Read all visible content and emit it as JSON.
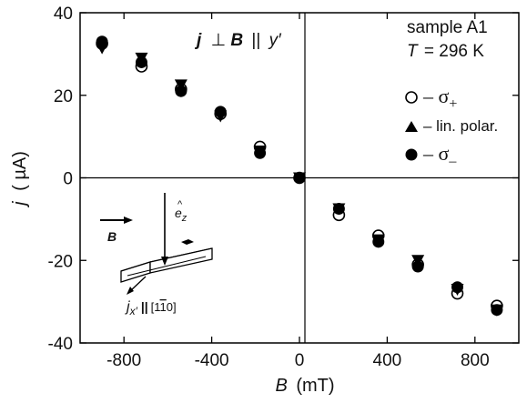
{
  "chart_data": {
    "type": "scatter",
    "xlabel_var": "B",
    "xlabel_unit": "(mT)",
    "ylabel_var": "j",
    "ylabel_unit": "( µA)",
    "xlim": [
      -1000,
      1000
    ],
    "ylim": [
      -40,
      40
    ],
    "xticks": [
      "-800",
      "-400",
      "0",
      "400",
      "800"
    ],
    "xtick_values": [
      -800,
      -400,
      0,
      400,
      800
    ],
    "yticks": [
      "40",
      "20",
      "0",
      "-20",
      "-40"
    ],
    "ytick_values": [
      40,
      20,
      0,
      -20,
      -40
    ],
    "zero_lines": true,
    "series": [
      {
        "name": "– σ₊",
        "marker": "circle-open",
        "x": [
          -900,
          -720,
          -540,
          -360,
          -180,
          0,
          180,
          360,
          540,
          720,
          900
        ],
        "y": [
          32.5,
          27,
          21.5,
          15.5,
          7.5,
          0,
          -9,
          -14,
          -21,
          -28,
          -31
        ]
      },
      {
        "name": "– lin. polar.",
        "marker": "triangle-filled",
        "x": [
          -900,
          -720,
          -540,
          -360,
          -180,
          0,
          180,
          360,
          540,
          720,
          900
        ],
        "y": [
          31.5,
          29,
          22.5,
          15,
          6.5,
          0,
          -7.5,
          -15,
          -20,
          -27,
          -32
        ]
      },
      {
        "name": "– σ₋",
        "marker": "circle-filled",
        "x": [
          -900,
          -720,
          -540,
          -360,
          -180,
          0,
          180,
          360,
          540,
          720,
          900
        ],
        "y": [
          33,
          28,
          21,
          16,
          6,
          0,
          -7.5,
          -15.5,
          -21.5,
          -26.5,
          -32
        ]
      }
    ]
  },
  "annotations": {
    "geometry_j": "j",
    "geometry_perp": "⊥",
    "geometry_B": "B",
    "geometry_par": "||",
    "geometry_y": "y′",
    "sample": "sample A1",
    "temp_T": "T",
    "temp_value": "= 296 K"
  },
  "legend": {
    "sigma_plus_prefix": "– σ",
    "sigma_plus_sub": "+",
    "lin": "– lin. polar.",
    "sigma_minus_prefix": "– σ",
    "sigma_minus_sub": "–"
  },
  "inset": {
    "ez": "e",
    "ez_hat": "^",
    "ez_sub": "z",
    "B_label": "B",
    "jx_j": "j",
    "jx_sub": "x′",
    "jx_par": "||",
    "jx_dir": "[1",
    "jx_dir_bar": "1",
    "jx_dir_end": "0]"
  }
}
